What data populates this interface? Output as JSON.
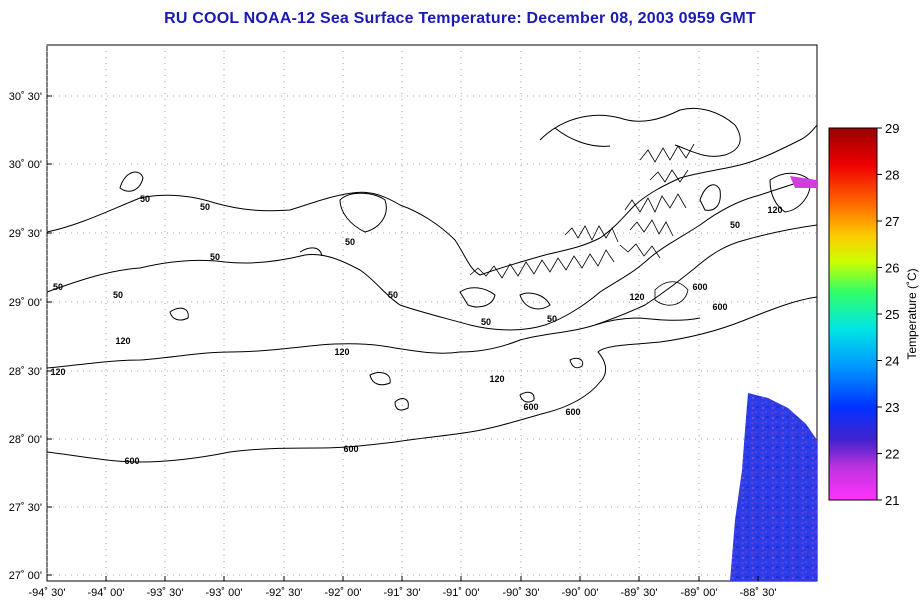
{
  "title": "RU COOL  NOAA-12  Sea Surface Temperature:  December 08, 2003 0959 GMT",
  "map": {
    "lat_labels": [
      "30˚ 30'",
      "30˚ 00'",
      "29˚ 30'",
      "29˚ 00'",
      "28˚ 30'",
      "28˚ 00'",
      "27˚ 30'",
      "27˚ 00'"
    ],
    "lon_labels": [
      "-94˚ 30'",
      "-94˚ 00'",
      "-93˚ 30'",
      "-93˚ 00'",
      "-92˚ 30'",
      "-92˚ 00'",
      "-91˚ 30'",
      "-91˚ 00'",
      "-90˚ 30'",
      "-90˚ 00'",
      "-89˚ 30'",
      "-89˚ 00'",
      "-88˚ 30'"
    ],
    "bathymetry_labels": [
      {
        "text": "50"
      },
      {
        "text": "50"
      },
      {
        "text": "50"
      },
      {
        "text": "50"
      },
      {
        "text": "50"
      },
      {
        "text": "50"
      },
      {
        "text": "50"
      },
      {
        "text": "50"
      },
      {
        "text": "50"
      },
      {
        "text": "50"
      },
      {
        "text": "120"
      },
      {
        "text": "120"
      },
      {
        "text": "120"
      },
      {
        "text": "120"
      },
      {
        "text": "120"
      },
      {
        "text": "120"
      },
      {
        "text": "600"
      },
      {
        "text": "600"
      },
      {
        "text": "600"
      },
      {
        "text": "600"
      },
      {
        "text": "600"
      },
      {
        "text": "600"
      }
    ]
  },
  "colorbar": {
    "title": "Temperature (˚C)",
    "tick_labels": [
      "29",
      "28",
      "27",
      "26",
      "25",
      "24",
      "23",
      "22",
      "21"
    ],
    "colors": [
      "#ff33ff",
      "#9933cc",
      "#0000ff",
      "#00bfff",
      "#00ffcc",
      "#66ff33",
      "#ffff00",
      "#ff9900",
      "#ff0000",
      "#990000"
    ]
  }
}
